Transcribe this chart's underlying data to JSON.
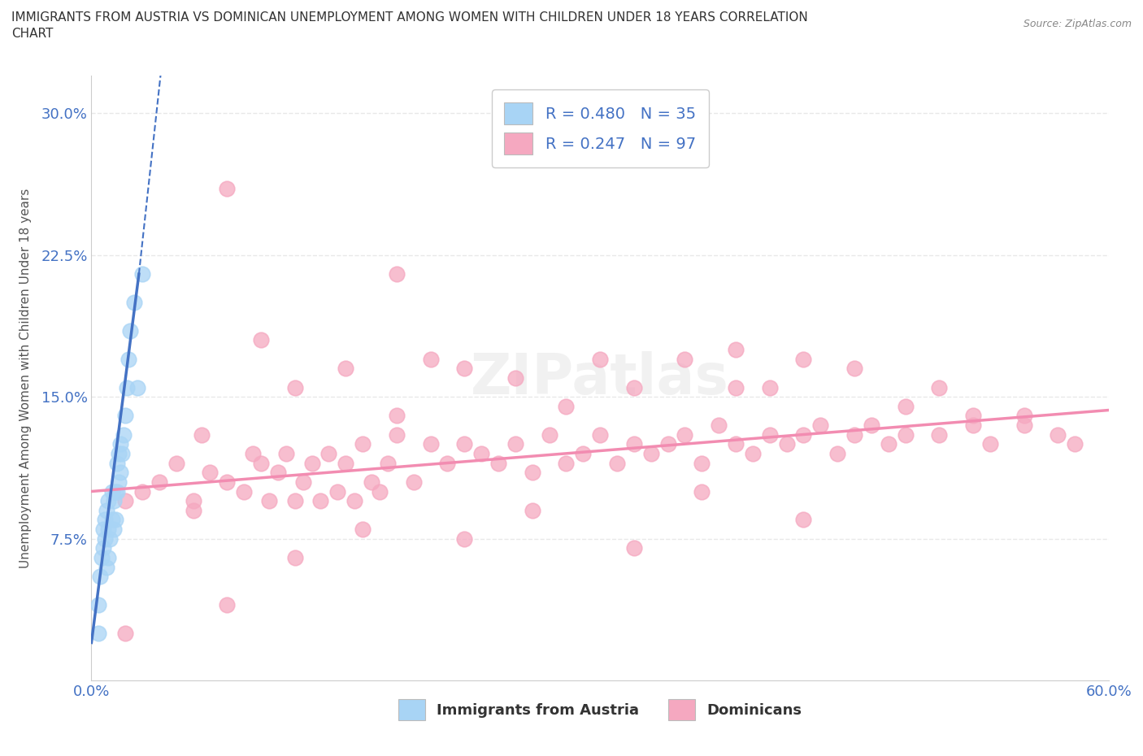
{
  "title_line1": "IMMIGRANTS FROM AUSTRIA VS DOMINICAN UNEMPLOYMENT AMONG WOMEN WITH CHILDREN UNDER 18 YEARS CORRELATION",
  "title_line2": "CHART",
  "source": "Source: ZipAtlas.com",
  "ylabel": "Unemployment Among Women with Children Under 18 years",
  "xlim": [
    0.0,
    0.6
  ],
  "ylim": [
    0.0,
    0.32
  ],
  "xticks": [
    0.0,
    0.1,
    0.2,
    0.3,
    0.4,
    0.5,
    0.6
  ],
  "xticklabels": [
    "0.0%",
    "",
    "",
    "",
    "",
    "",
    "60.0%"
  ],
  "yticks": [
    0.0,
    0.075,
    0.15,
    0.225,
    0.3
  ],
  "yticklabels": [
    "",
    "7.5%",
    "15.0%",
    "22.5%",
    "30.0%"
  ],
  "austria_color": "#a8d4f5",
  "dominican_color": "#f5a8c0",
  "austria_line_color": "#4472c4",
  "dominican_line_color": "#f28cb1",
  "watermark": "ZIPatlas",
  "austria_scatter_x": [
    0.004,
    0.004,
    0.005,
    0.006,
    0.007,
    0.007,
    0.008,
    0.008,
    0.009,
    0.009,
    0.01,
    0.01,
    0.01,
    0.011,
    0.012,
    0.012,
    0.013,
    0.013,
    0.014,
    0.014,
    0.015,
    0.015,
    0.016,
    0.016,
    0.017,
    0.017,
    0.018,
    0.019,
    0.02,
    0.021,
    0.022,
    0.023,
    0.025,
    0.027,
    0.03
  ],
  "austria_scatter_y": [
    0.025,
    0.04,
    0.055,
    0.065,
    0.07,
    0.08,
    0.075,
    0.085,
    0.06,
    0.09,
    0.065,
    0.08,
    0.095,
    0.075,
    0.085,
    0.1,
    0.08,
    0.095,
    0.085,
    0.1,
    0.1,
    0.115,
    0.105,
    0.12,
    0.11,
    0.125,
    0.12,
    0.13,
    0.14,
    0.155,
    0.17,
    0.185,
    0.2,
    0.155,
    0.215
  ],
  "dominican_scatter_x": [
    0.02,
    0.03,
    0.04,
    0.05,
    0.06,
    0.065,
    0.07,
    0.08,
    0.09,
    0.095,
    0.1,
    0.105,
    0.11,
    0.115,
    0.12,
    0.125,
    0.13,
    0.135,
    0.14,
    0.145,
    0.15,
    0.155,
    0.16,
    0.165,
    0.17,
    0.175,
    0.18,
    0.19,
    0.2,
    0.21,
    0.22,
    0.23,
    0.24,
    0.25,
    0.26,
    0.27,
    0.28,
    0.29,
    0.3,
    0.31,
    0.32,
    0.33,
    0.34,
    0.35,
    0.36,
    0.37,
    0.38,
    0.39,
    0.4,
    0.41,
    0.42,
    0.43,
    0.44,
    0.45,
    0.46,
    0.47,
    0.48,
    0.5,
    0.52,
    0.53,
    0.55,
    0.57,
    0.58,
    0.1,
    0.15,
    0.12,
    0.2,
    0.25,
    0.3,
    0.35,
    0.4,
    0.45,
    0.5,
    0.55,
    0.38,
    0.28,
    0.18,
    0.08,
    0.22,
    0.32,
    0.42,
    0.52,
    0.48,
    0.36,
    0.26,
    0.16,
    0.06,
    0.42,
    0.32,
    0.22,
    0.12,
    0.02,
    0.08,
    0.18,
    0.28,
    0.38
  ],
  "dominican_scatter_y": [
    0.095,
    0.1,
    0.105,
    0.115,
    0.095,
    0.13,
    0.11,
    0.105,
    0.1,
    0.12,
    0.115,
    0.095,
    0.11,
    0.12,
    0.095,
    0.105,
    0.115,
    0.095,
    0.12,
    0.1,
    0.115,
    0.095,
    0.125,
    0.105,
    0.1,
    0.115,
    0.13,
    0.105,
    0.125,
    0.115,
    0.125,
    0.12,
    0.115,
    0.125,
    0.11,
    0.13,
    0.115,
    0.12,
    0.13,
    0.115,
    0.125,
    0.12,
    0.125,
    0.13,
    0.115,
    0.135,
    0.125,
    0.12,
    0.13,
    0.125,
    0.13,
    0.135,
    0.12,
    0.13,
    0.135,
    0.125,
    0.13,
    0.13,
    0.135,
    0.125,
    0.14,
    0.13,
    0.125,
    0.18,
    0.165,
    0.155,
    0.17,
    0.16,
    0.17,
    0.17,
    0.155,
    0.165,
    0.155,
    0.135,
    0.155,
    0.145,
    0.14,
    0.04,
    0.165,
    0.155,
    0.17,
    0.14,
    0.145,
    0.1,
    0.09,
    0.08,
    0.09,
    0.085,
    0.07,
    0.075,
    0.065,
    0.025,
    0.26,
    0.215,
    0.28,
    0.175
  ],
  "background_color": "#ffffff",
  "grid_color": "#e8e8e8",
  "austria_trendline_x": [
    0.0,
    0.032
  ],
  "austria_trendline_y_start": 0.095,
  "austria_trendline_y_end": 0.215,
  "dominican_trendline_x": [
    0.0,
    0.6
  ],
  "dominican_trendline_y_start": 0.1,
  "dominican_trendline_y_end": 0.143
}
